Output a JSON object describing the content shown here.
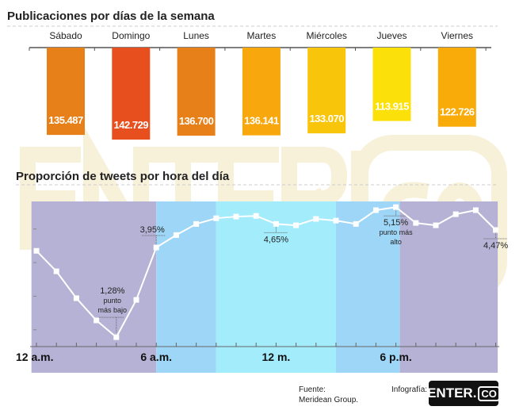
{
  "chart_data": [
    {
      "type": "bar",
      "title": "Publicaciones por días de la semana",
      "categories": [
        "Sábado",
        "Domingo",
        "Lunes",
        "Martes",
        "Miércoles",
        "Jueves",
        "Viernes"
      ],
      "values": [
        135487,
        142729,
        136700,
        136141,
        133070,
        113915,
        122726
      ],
      "labels": [
        "135.487",
        "142.729",
        "136.700",
        "136.141",
        "133.070",
        "113.915",
        "122.726"
      ],
      "colors": [
        "#e8801a",
        "#e84f1e",
        "#e8801a",
        "#f8a70c",
        "#f9c50a",
        "#fbe00a",
        "#f9ab0a"
      ]
    },
    {
      "type": "line",
      "title": "Proporción de tweets por hora del día",
      "x": [
        0,
        1,
        2,
        3,
        4,
        5,
        6,
        7,
        8,
        9,
        10,
        11,
        12,
        13,
        14,
        15,
        16,
        17,
        18,
        19,
        20,
        21,
        22,
        23
      ],
      "values": [
        3.85,
        3.24,
        2.44,
        1.78,
        1.28,
        2.39,
        3.95,
        4.32,
        4.65,
        4.82,
        4.87,
        4.89,
        4.65,
        4.61,
        4.8,
        4.75,
        4.65,
        5.06,
        5.15,
        4.68,
        4.61,
        4.94,
        5.06,
        4.47
      ],
      "ylim": [
        1.0,
        5.32
      ],
      "xticks": [
        {
          "hour": 0,
          "label": "12 a.m."
        },
        {
          "hour": 6,
          "label": "6 a.m."
        },
        {
          "hour": 12,
          "label": "12 m."
        },
        {
          "hour": 18,
          "label": "6 p.m."
        }
      ],
      "annotations": [
        {
          "hour": 4,
          "label": "1,28%",
          "sub": [
            "punto",
            "más bajo"
          ]
        },
        {
          "hour": 6,
          "label": "3,95%",
          "sub": []
        },
        {
          "hour": 12,
          "label": "4,65%",
          "sub": []
        },
        {
          "hour": 18,
          "label": "5,15%",
          "sub": [
            "punto más",
            "alto"
          ]
        },
        {
          "hour": 23,
          "label": "4,47%",
          "sub": []
        }
      ],
      "bands": [
        {
          "from": -0.25,
          "to": 6,
          "color": "#b6b2d6"
        },
        {
          "from": 6,
          "to": 9,
          "color": "#9ed6f8"
        },
        {
          "from": 9,
          "to": 15,
          "color": "#a2ecfb"
        },
        {
          "from": 15,
          "to": 18.2,
          "color": "#9ed6f8"
        },
        {
          "from": 18.2,
          "to": 23.1,
          "color": "#b6b2d6"
        }
      ]
    }
  ],
  "footer": {
    "source_label": "Fuente:",
    "source": "Meridean Group.",
    "credit_label": "Infografía:",
    "logo_main": "ENTER.",
    "logo_co": "CO"
  },
  "watermark": "ENTER.CO"
}
